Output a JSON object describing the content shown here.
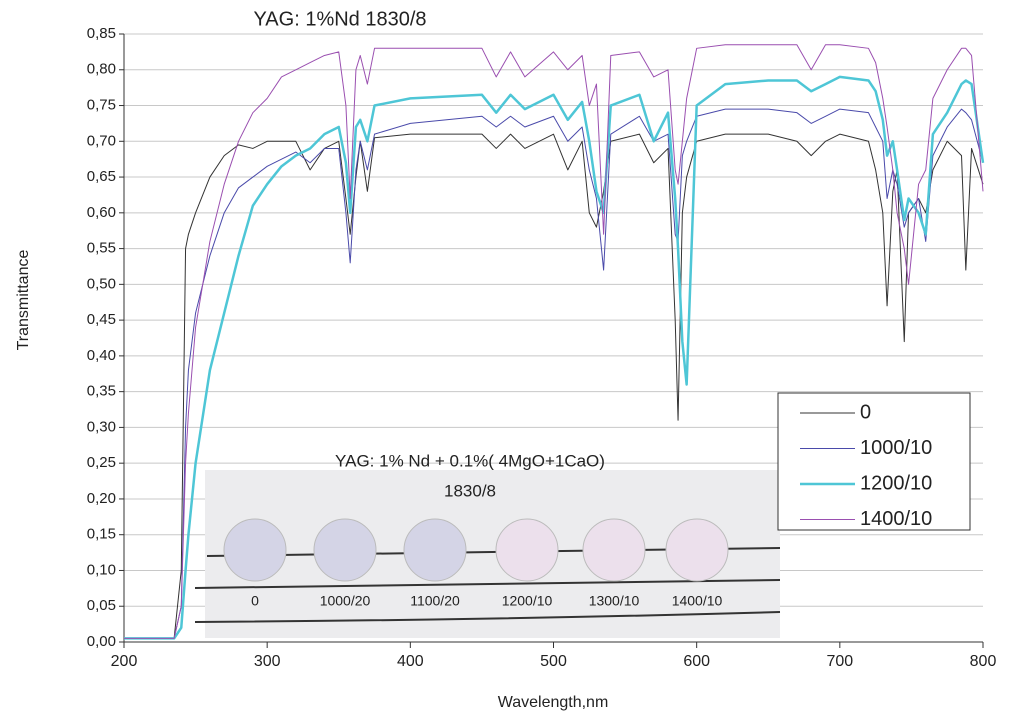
{
  "chart_data": {
    "type": "line",
    "title": "YAG: 1%Nd 1830/8",
    "x_label": "Wavelength,nm",
    "y_label": "Transmittance",
    "x": [
      200,
      210,
      220,
      230,
      235,
      240,
      243,
      245,
      250,
      260,
      270,
      280,
      290,
      300,
      310,
      320,
      330,
      340,
      350,
      355,
      358,
      362,
      365,
      370,
      375,
      400,
      450,
      460,
      470,
      480,
      500,
      510,
      520,
      525,
      530,
      535,
      540,
      560,
      570,
      580,
      585,
      587,
      590,
      593,
      600,
      620,
      650,
      670,
      680,
      690,
      700,
      720,
      725,
      730,
      733,
      737,
      740,
      745,
      748,
      755,
      760,
      765,
      775,
      785,
      788,
      792,
      800
    ],
    "series": [
      {
        "name": "0",
        "color": "#333333",
        "width": 1,
        "values": [
          0.005,
          0.005,
          0.005,
          0.005,
          0.005,
          0.1,
          0.55,
          0.57,
          0.6,
          0.65,
          0.68,
          0.695,
          0.69,
          0.7,
          0.7,
          0.7,
          0.66,
          0.69,
          0.7,
          0.62,
          0.57,
          0.65,
          0.7,
          0.63,
          0.705,
          0.71,
          0.71,
          0.69,
          0.71,
          0.69,
          0.71,
          0.66,
          0.7,
          0.6,
          0.58,
          0.63,
          0.7,
          0.71,
          0.67,
          0.69,
          0.45,
          0.31,
          0.6,
          0.65,
          0.7,
          0.71,
          0.71,
          0.7,
          0.68,
          0.7,
          0.71,
          0.7,
          0.66,
          0.6,
          0.47,
          0.63,
          0.66,
          0.42,
          0.6,
          0.62,
          0.6,
          0.66,
          0.7,
          0.68,
          0.52,
          0.69,
          0.64
        ]
      },
      {
        "name": "1000/10",
        "color": "#4a4aaa",
        "width": 1,
        "values": [
          0.005,
          0.005,
          0.005,
          0.005,
          0.005,
          0.05,
          0.3,
          0.38,
          0.46,
          0.54,
          0.6,
          0.635,
          0.65,
          0.665,
          0.675,
          0.685,
          0.67,
          0.69,
          0.69,
          0.6,
          0.53,
          0.66,
          0.7,
          0.66,
          0.71,
          0.725,
          0.735,
          0.72,
          0.735,
          0.72,
          0.735,
          0.7,
          0.72,
          0.66,
          0.62,
          0.52,
          0.71,
          0.735,
          0.7,
          0.71,
          0.57,
          0.56,
          0.68,
          0.7,
          0.735,
          0.745,
          0.745,
          0.74,
          0.725,
          0.735,
          0.745,
          0.74,
          0.72,
          0.7,
          0.62,
          0.66,
          0.64,
          0.58,
          0.6,
          0.62,
          0.56,
          0.68,
          0.72,
          0.745,
          0.74,
          0.73,
          0.67
        ]
      },
      {
        "name": "1200/10",
        "color": "#4ec6d6",
        "width": 2.5,
        "values": [
          0.005,
          0.005,
          0.005,
          0.005,
          0.005,
          0.02,
          0.1,
          0.15,
          0.25,
          0.38,
          0.46,
          0.54,
          0.61,
          0.64,
          0.665,
          0.68,
          0.69,
          0.71,
          0.72,
          0.67,
          0.6,
          0.72,
          0.73,
          0.7,
          0.75,
          0.76,
          0.765,
          0.74,
          0.765,
          0.745,
          0.765,
          0.73,
          0.755,
          0.7,
          0.63,
          0.6,
          0.75,
          0.765,
          0.7,
          0.74,
          0.62,
          0.55,
          0.42,
          0.36,
          0.75,
          0.78,
          0.785,
          0.785,
          0.77,
          0.78,
          0.79,
          0.785,
          0.77,
          0.73,
          0.68,
          0.7,
          0.66,
          0.59,
          0.62,
          0.6,
          0.57,
          0.71,
          0.74,
          0.78,
          0.785,
          0.78,
          0.67
        ]
      },
      {
        "name": "1400/10",
        "color": "#9a4fb0",
        "width": 1,
        "values": [
          0.005,
          0.005,
          0.005,
          0.005,
          0.005,
          0.05,
          0.25,
          0.32,
          0.44,
          0.56,
          0.64,
          0.7,
          0.74,
          0.76,
          0.79,
          0.8,
          0.81,
          0.82,
          0.825,
          0.75,
          0.62,
          0.8,
          0.82,
          0.78,
          0.83,
          0.83,
          0.83,
          0.79,
          0.825,
          0.79,
          0.825,
          0.8,
          0.82,
          0.75,
          0.78,
          0.57,
          0.82,
          0.825,
          0.79,
          0.8,
          0.66,
          0.64,
          0.7,
          0.76,
          0.83,
          0.835,
          0.835,
          0.835,
          0.8,
          0.835,
          0.835,
          0.83,
          0.81,
          0.76,
          0.72,
          0.66,
          0.6,
          0.55,
          0.5,
          0.64,
          0.66,
          0.76,
          0.8,
          0.83,
          0.83,
          0.82,
          0.63
        ]
      }
    ],
    "xlim": [
      200,
      800
    ],
    "xticks": [
      200,
      300,
      400,
      500,
      600,
      700,
      800
    ],
    "ylim": [
      0,
      0.85
    ],
    "yticks": [
      {
        "value": 0,
        "label": "0,00"
      },
      {
        "value": 0.05,
        "label": "0,05"
      },
      {
        "value": 0.1,
        "label": "0,10"
      },
      {
        "value": 0.15,
        "label": "0,15"
      },
      {
        "value": 0.2,
        "label": "0,20"
      },
      {
        "value": 0.25,
        "label": "0,25"
      },
      {
        "value": 0.3,
        "label": "0,30"
      },
      {
        "value": 0.35,
        "label": "0,35"
      },
      {
        "value": 0.4,
        "label": "0,40"
      },
      {
        "value": 0.45,
        "label": "0,45"
      },
      {
        "value": 0.5,
        "label": "0,50"
      },
      {
        "value": 0.55,
        "label": "0,55"
      },
      {
        "value": 0.6,
        "label": "0,60"
      },
      {
        "value": 0.65,
        "label": "0,65"
      },
      {
        "value": 0.7,
        "label": "0,70"
      },
      {
        "value": 0.75,
        "label": "0,75"
      },
      {
        "value": 0.8,
        "label": "0,80"
      },
      {
        "value": 0.85,
        "label": "0,85"
      }
    ],
    "grid": true,
    "legend": "lower right",
    "inset": {
      "title": "YAG: 1% Nd + 0.1%( 4MgO+1CaO)",
      "subtitle": "1830/8",
      "labels": [
        "0",
        "1000/20",
        "1100/20",
        "1200/10",
        "1300/10",
        "1400/10"
      ]
    }
  }
}
